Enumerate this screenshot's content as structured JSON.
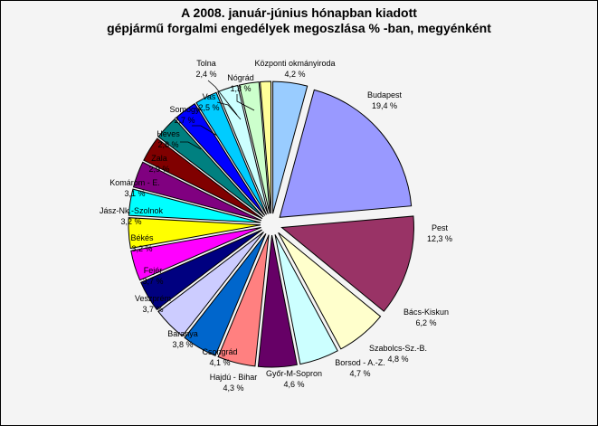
{
  "chart_data": {
    "type": "pie",
    "title_lines": [
      "A  2008. január-június hónapban kiadott",
      "gépjármű forgalmi engedélyek megoszlása % -ban, megyénként"
    ],
    "slices": [
      {
        "name": "Központi okmányiroda",
        "value": 4.2,
        "value_label": "4,2 %",
        "color": "#99ccff"
      },
      {
        "name": "Budapest",
        "value": 19.4,
        "value_label": "19,4 %",
        "color": "#9999ff"
      },
      {
        "name": "Pest",
        "value": 12.3,
        "value_label": "12,3 %",
        "color": "#993366"
      },
      {
        "name": "Bács-Kiskun",
        "value": 6.2,
        "value_label": "6,2 %",
        "color": "#ffffcc"
      },
      {
        "name": "Szabolcs-Sz.-B.",
        "value": 4.8,
        "value_label": "4,8 %",
        "color": "#ccffff"
      },
      {
        "name": "Borsod - A.-Z.",
        "value": 4.7,
        "value_label": "4,7 %",
        "color": "#660066"
      },
      {
        "name": "Győr-M-Sopron",
        "value": 4.6,
        "value_label": "4,6 %",
        "color": "#ff8080"
      },
      {
        "name": "Hajdú - Bihar",
        "value": 4.3,
        "value_label": "4,3 %",
        "color": "#0066cc"
      },
      {
        "name": "Csongrád",
        "value": 4.1,
        "value_label": "4,1 %",
        "color": "#ccccff"
      },
      {
        "name": "Baranya",
        "value": 3.8,
        "value_label": "3,8 %",
        "color": "#000080"
      },
      {
        "name": "Veszprém",
        "value": 3.7,
        "value_label": "3,7 %",
        "color": "#ff00ff"
      },
      {
        "name": "Fejér",
        "value": 3.7,
        "value_label": "3,7 %",
        "color": "#ffff00"
      },
      {
        "name": "Békés",
        "value": 3.2,
        "value_label": "3,2 %",
        "color": "#00ffff"
      },
      {
        "name": "Jász-Nk.-Szolnok",
        "value": 3.2,
        "value_label": "3,2 %",
        "color": "#800080"
      },
      {
        "name": "Komárom - E.",
        "value": 3.1,
        "value_label": "3,1 %",
        "color": "#800000"
      },
      {
        "name": "Zala",
        "value": 2.9,
        "value_label": "2,9 %",
        "color": "#008080"
      },
      {
        "name": "Heves",
        "value": 2.8,
        "value_label": "2,8 %",
        "color": "#0000ff"
      },
      {
        "name": "Somogy",
        "value": 2.7,
        "value_label": "2,7 %",
        "color": "#00ccff"
      },
      {
        "name": "Vas",
        "value": 2.5,
        "value_label": "2,5 %",
        "color": "#ccffff"
      },
      {
        "name": "Tolna",
        "value": 2.4,
        "value_label": "2,4 %",
        "color": "#ccffcc"
      },
      {
        "name": "Nógrád",
        "value": 1.3,
        "value_label": "1,3 %",
        "color": "#ffff99"
      }
    ],
    "exploded": true,
    "legend": "none"
  }
}
